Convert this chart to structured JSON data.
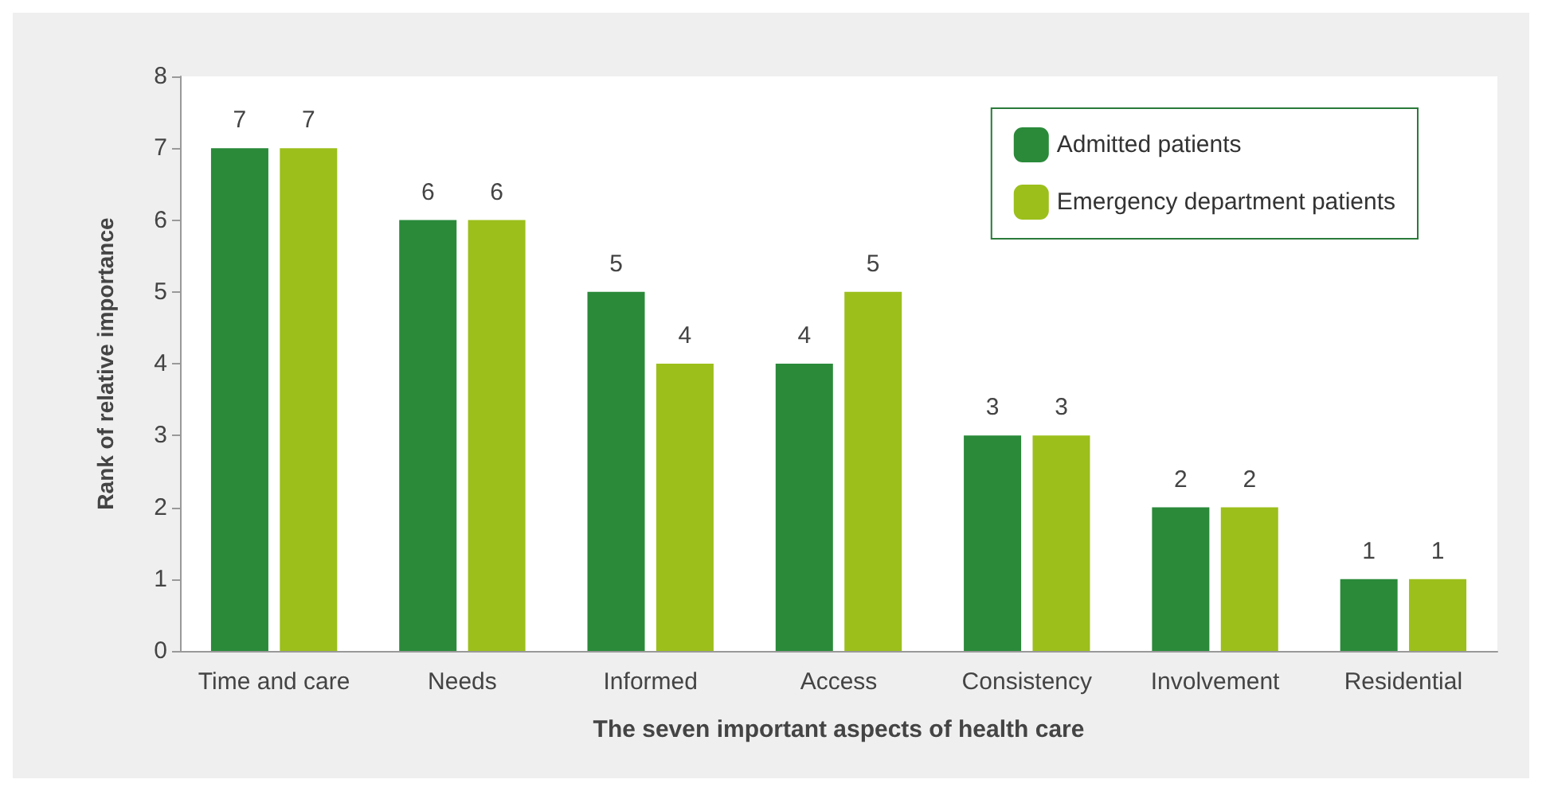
{
  "chart_data": {
    "type": "bar",
    "xlabel": "The seven important aspects of health care",
    "ylabel": "Rank of relative importance",
    "categories": [
      "Time and care",
      "Needs",
      "Informed",
      "Access",
      "Consistency",
      "Involvement",
      "Residential"
    ],
    "series": [
      {
        "name": "Admitted patients",
        "color": "#2a8a3a",
        "values": [
          7,
          6,
          5,
          4,
          3,
          2,
          1
        ]
      },
      {
        "name": "Emergency department patients",
        "color": "#9cbf1c",
        "values": [
          7,
          6,
          4,
          5,
          3,
          2,
          1
        ]
      }
    ],
    "ylim": [
      0,
      8
    ],
    "yticks": [
      0,
      1,
      2,
      3,
      4,
      5,
      6,
      7,
      8
    ],
    "grid": false,
    "legend": "top right",
    "data_labels": true
  }
}
